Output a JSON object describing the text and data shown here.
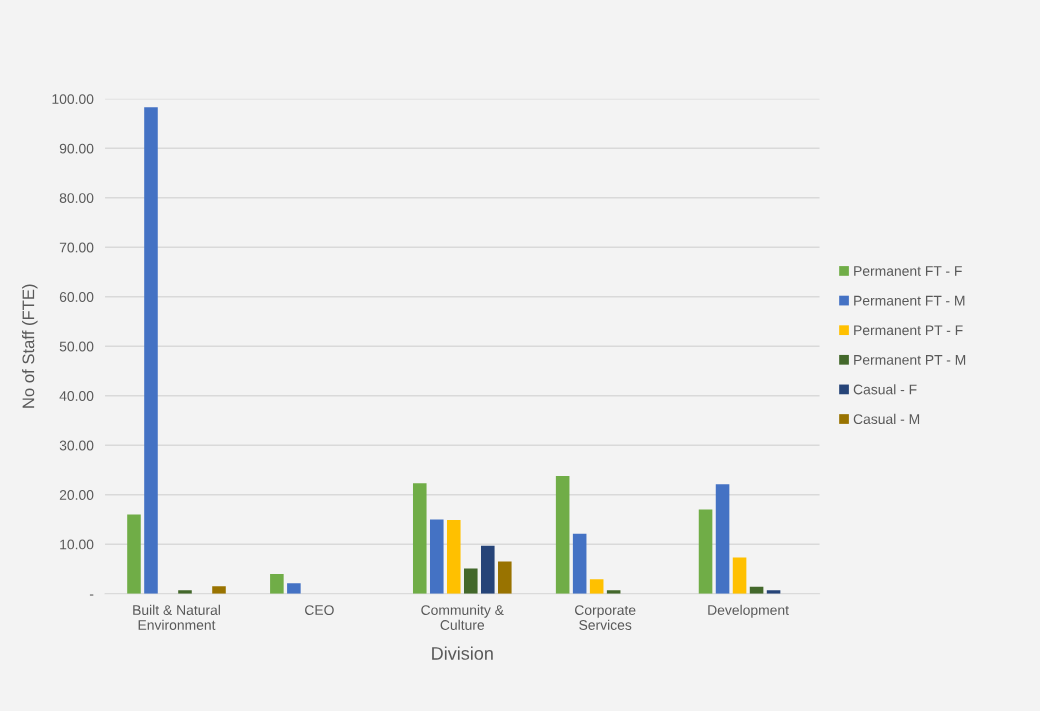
{
  "chart_data": {
    "type": "bar",
    "xlabel": "Division",
    "ylabel": "No of Staff (FTE)",
    "categories": [
      "Built & Natural\nEnvironment",
      "CEO",
      "Community &\nCulture",
      "Corporate\nServices",
      "Development"
    ],
    "series": [
      {
        "name": "Permanent FT - F",
        "color": "#70ad47",
        "values": [
          16.0,
          4.0,
          22.3,
          23.8,
          17.0
        ]
      },
      {
        "name": "Permanent FT - M",
        "color": "#4472c4",
        "values": [
          98.3,
          2.1,
          15.0,
          12.1,
          22.1
        ]
      },
      {
        "name": "Permanent PT - F",
        "color": "#ffc000",
        "values": [
          null,
          null,
          14.9,
          2.9,
          7.3
        ]
      },
      {
        "name": "Permanent PT - M",
        "color": "#43682b",
        "values": [
          0.7,
          null,
          5.1,
          0.7,
          1.4
        ]
      },
      {
        "name": "Casual - F",
        "color": "#264478",
        "values": [
          null,
          null,
          9.7,
          null,
          0.7
        ]
      },
      {
        "name": "Casual - M",
        "color": "#997300",
        "values": [
          1.5,
          null,
          6.5,
          null,
          null
        ]
      }
    ],
    "ylim": [
      0,
      100
    ],
    "yticks": [
      {
        "value": 0,
        "label": "-"
      },
      {
        "value": 10,
        "label": "10.00"
      },
      {
        "value": 20,
        "label": "20.00"
      },
      {
        "value": 30,
        "label": "30.00"
      },
      {
        "value": 40,
        "label": "40.00"
      },
      {
        "value": 50,
        "label": "50.00"
      },
      {
        "value": 60,
        "label": "60.00"
      },
      {
        "value": 70,
        "label": "70.00"
      },
      {
        "value": 80,
        "label": "80.00"
      },
      {
        "value": 90,
        "label": "90.00"
      },
      {
        "value": 100,
        "label": "100.00"
      }
    ],
    "grid": "y",
    "legend": "right"
  }
}
